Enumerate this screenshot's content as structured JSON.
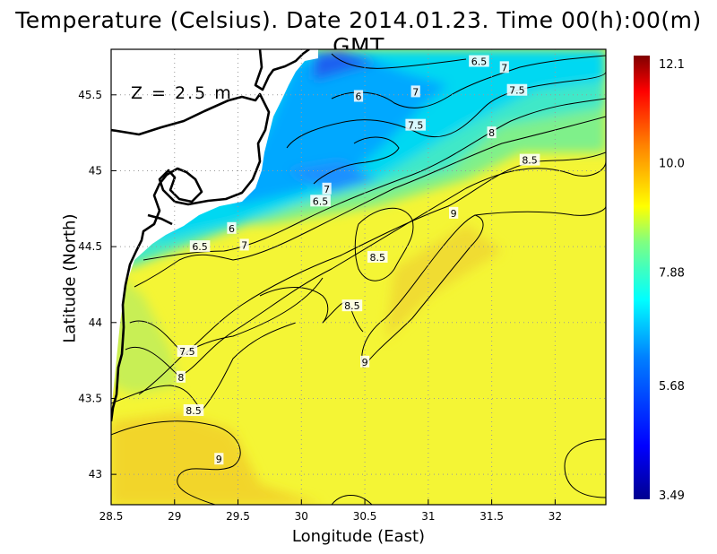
{
  "chart_data": {
    "type": "heatmap",
    "title": "Temperature (Celsius). Date 2014.01.23. Time 00(h):00(m) GMT",
    "xlabel": "Longitude (East)",
    "ylabel": "Latitude (North)",
    "annotation": "Z = 2.5 m",
    "xlim": [
      28.5,
      32.4
    ],
    "ylim": [
      42.8,
      45.8
    ],
    "xticks": [
      "28.5",
      "29",
      "29.5",
      "30",
      "30.5",
      "31",
      "31.5",
      "32"
    ],
    "yticks": [
      "43",
      "43.5",
      "44",
      "44.5",
      "45",
      "45.5"
    ],
    "grid": true,
    "colorbar": {
      "min": 3.49,
      "max": 12.1,
      "ticks": [
        "12.1",
        "10.0",
        "7.88",
        "5.68",
        "3.49"
      ]
    },
    "contour_labels": [
      {
        "text": "6.5",
        "x": 31.4,
        "y": 45.72
      },
      {
        "text": "7",
        "x": 31.6,
        "y": 45.68
      },
      {
        "text": "7.5",
        "x": 31.7,
        "y": 45.53
      },
      {
        "text": "7",
        "x": 30.9,
        "y": 45.52
      },
      {
        "text": "6",
        "x": 30.45,
        "y": 45.49
      },
      {
        "text": "7.5",
        "x": 30.9,
        "y": 45.3
      },
      {
        "text": "8",
        "x": 31.5,
        "y": 45.25
      },
      {
        "text": "8.5",
        "x": 31.8,
        "y": 45.07
      },
      {
        "text": "7",
        "x": 30.2,
        "y": 44.88
      },
      {
        "text": "6.5",
        "x": 30.15,
        "y": 44.8
      },
      {
        "text": "9",
        "x": 31.2,
        "y": 44.72
      },
      {
        "text": "6",
        "x": 29.45,
        "y": 44.62
      },
      {
        "text": "6.5",
        "x": 29.2,
        "y": 44.5
      },
      {
        "text": "7",
        "x": 29.55,
        "y": 44.51
      },
      {
        "text": "8.5",
        "x": 30.6,
        "y": 44.43
      },
      {
        "text": "8.5",
        "x": 30.4,
        "y": 44.11
      },
      {
        "text": "7.5",
        "x": 29.1,
        "y": 43.81
      },
      {
        "text": "8",
        "x": 29.05,
        "y": 43.64
      },
      {
        "text": "9",
        "x": 30.5,
        "y": 43.74
      },
      {
        "text": "8.5",
        "x": 29.15,
        "y": 43.42
      },
      {
        "text": "9",
        "x": 29.35,
        "y": 43.1
      }
    ]
  }
}
